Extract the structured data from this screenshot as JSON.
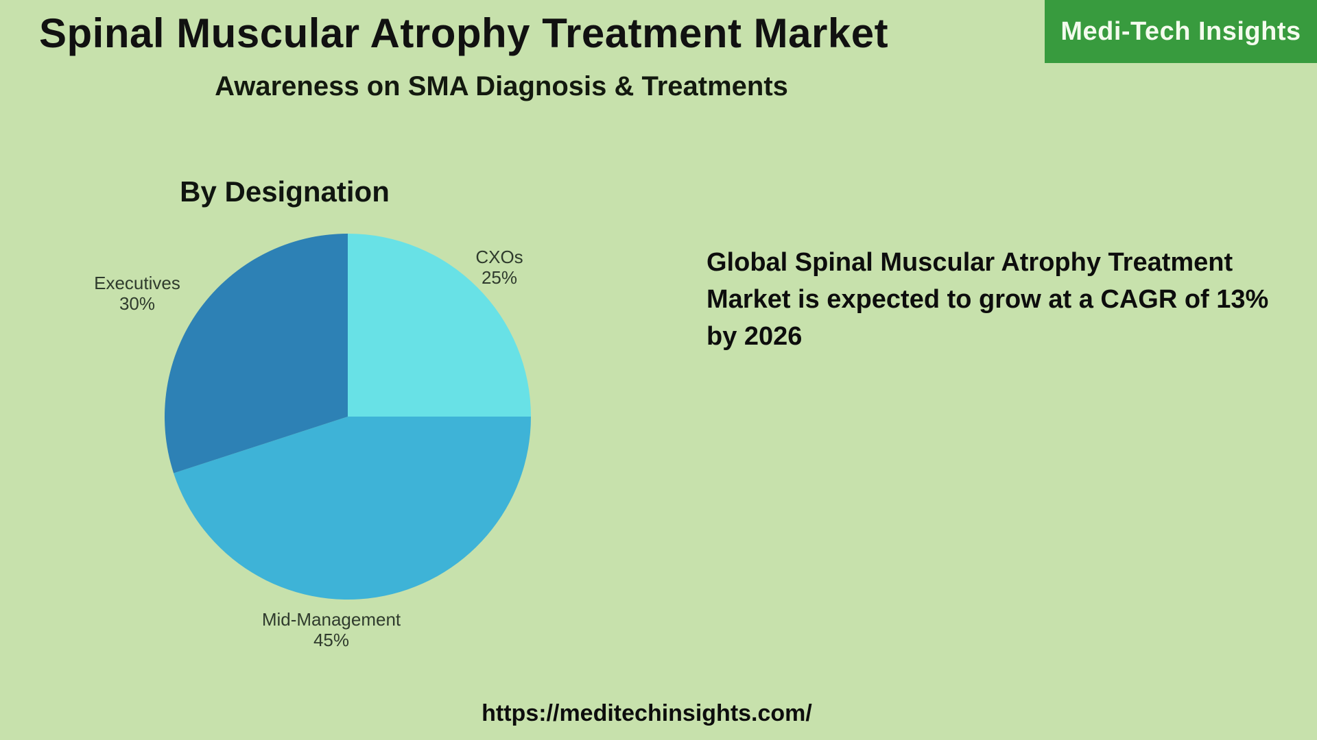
{
  "header": {
    "title": "Spinal Muscular Atrophy Treatment Market",
    "subtitle": "Awareness on SMA Diagnosis & Treatments",
    "brand": "Medi-Tech Insights"
  },
  "chart_data": {
    "type": "pie",
    "title": "By Designation",
    "labels": [
      "CXOs",
      "Mid-Management",
      "Executives"
    ],
    "values": [
      25,
      45,
      30
    ],
    "value_labels": [
      "25%",
      "45%",
      "30%"
    ],
    "colors": [
      "#68e1e6",
      "#3eb3d7",
      "#2d81b5"
    ],
    "start_angle_deg": 0,
    "direction": "clockwise",
    "legend": "none",
    "label_placement": "outside"
  },
  "callout": {
    "lines": [
      "Global Spinal Muscular Atrophy Treatment",
      "Market is expected to grow at a CAGR of 13%",
      "by 2026"
    ]
  },
  "footer": {
    "url": "https://meditechinsights.com/"
  },
  "colors": {
    "background": "#c7e1ac",
    "brand_green": "#389b3e",
    "heading_text": "#111111",
    "label_text": "#2f3b2d"
  }
}
